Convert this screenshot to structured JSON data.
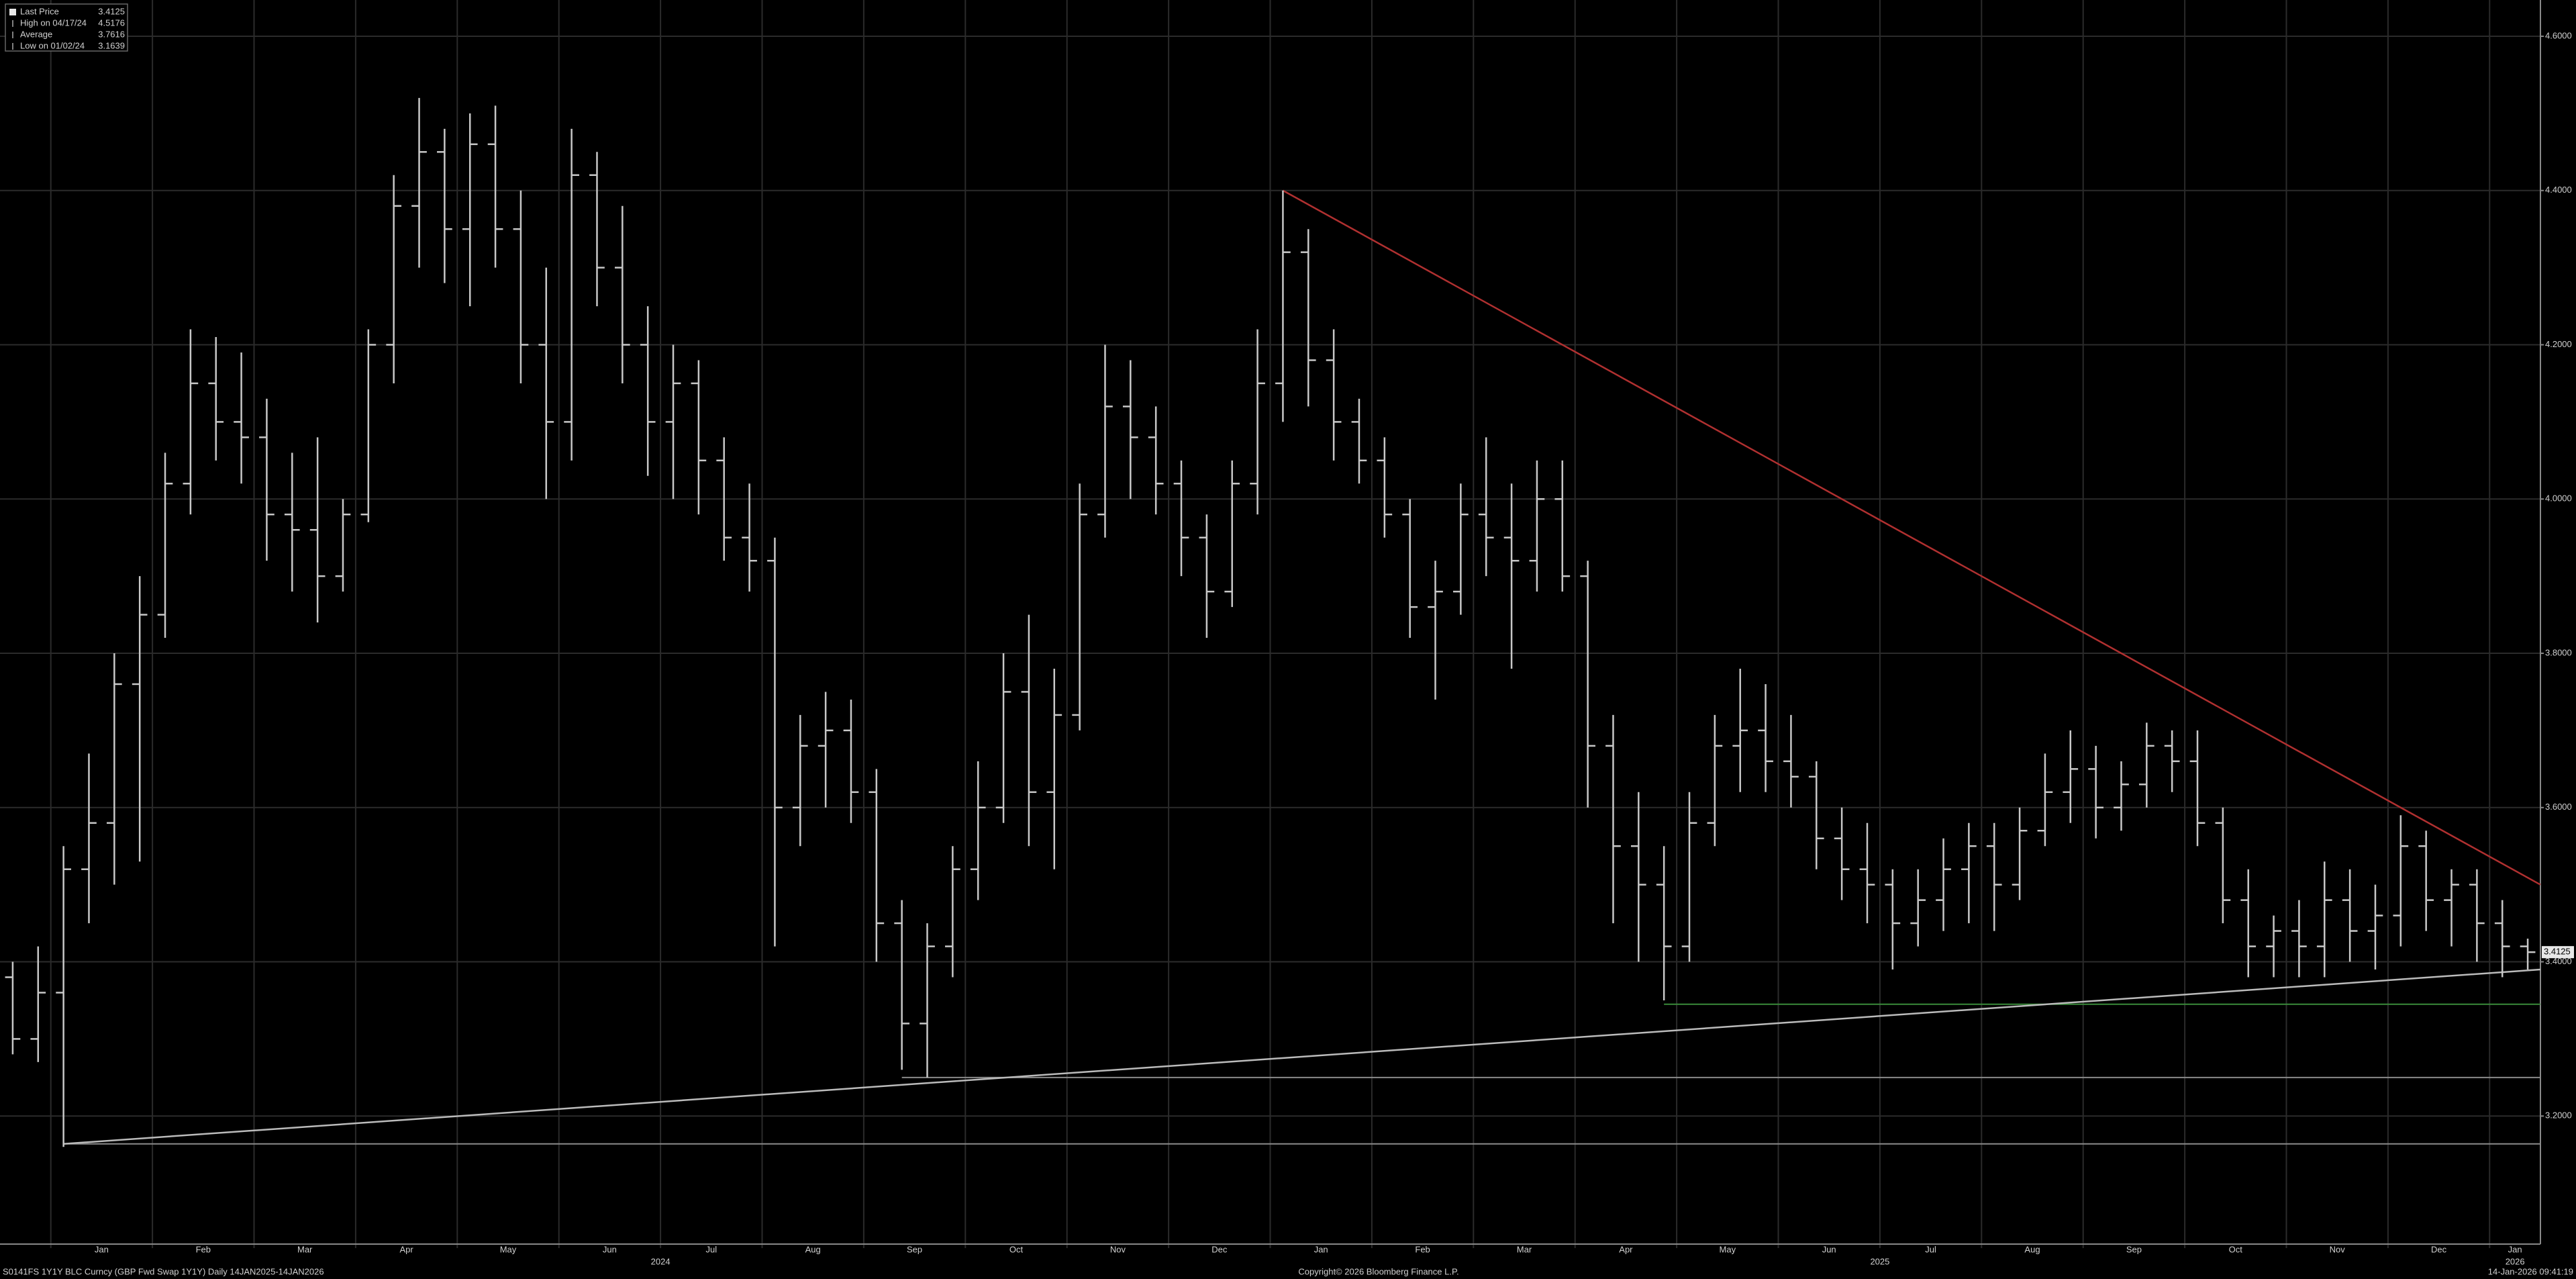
{
  "chart_data": {
    "type": "ohlc",
    "legend": [
      {
        "label": "Last Price",
        "value": 3.4125
      },
      {
        "label": "High on 04/17/24",
        "value": 4.5176
      },
      {
        "label": "Average",
        "value": 3.7616
      },
      {
        "label": "Low on 01/02/24",
        "value": 3.1639
      }
    ],
    "footer": {
      "left": "S0141FS 1Y1Y BLC Curncy (GBP Fwd Swap 1Y1Y) Daily 14JAN2025-14JAN2026",
      "center": "Copyright© 2026 Bloomberg Finance L.P.",
      "right": "14-Jan-2026 09:41:19"
    },
    "color": "#c8c8c8",
    "ylim": [
      3.034,
      4.647
    ],
    "yticks": [
      {
        "value": 3.2,
        "label": "3.2000"
      },
      {
        "value": 3.4,
        "label": "3.4000"
      },
      {
        "value": 3.6,
        "label": "3.6000"
      },
      {
        "value": 3.8,
        "label": "3.8000"
      },
      {
        "value": 4.0,
        "label": "4.0000"
      },
      {
        "value": 4.2,
        "label": "4.2000"
      },
      {
        "value": 4.4,
        "label": "4.4000"
      },
      {
        "value": 4.6,
        "label": "4.6000"
      }
    ],
    "grid": true,
    "trendlines": [
      {
        "color": "#b03030",
        "y": [
          4.4,
          3.5
        ]
      },
      {
        "color": "#bbbbbb",
        "y": [
          3.1639,
          3.39
        ]
      }
    ],
    "levels": [
      {
        "color": "#8a8a8a",
        "y": 3.25
      },
      {
        "color": "#3a8a3a",
        "y": 3.345
      }
    ],
    "periods": [
      {
        "year": null,
        "months": [
          {
            "label": null,
            "bars": [
              [
                3.38,
                3.4,
                3.28,
                3.3
              ],
              [
                3.3,
                3.42,
                3.27,
                3.36
              ]
            ]
          }
        ]
      },
      {
        "year": "2024",
        "months": [
          {
            "label": "Jan",
            "bars": [
              [
                3.36,
                3.55,
                3.16,
                3.52
              ],
              [
                3.52,
                3.67,
                3.45,
                3.58
              ],
              [
                3.58,
                3.8,
                3.5,
                3.76
              ],
              [
                3.76,
                3.9,
                3.53,
                3.85
              ]
            ]
          },
          {
            "label": "Feb",
            "bars": [
              [
                3.85,
                4.06,
                3.82,
                4.02
              ],
              [
                4.02,
                4.22,
                3.98,
                4.15
              ],
              [
                4.15,
                4.21,
                4.05,
                4.1
              ],
              [
                4.1,
                4.19,
                4.02,
                4.08
              ]
            ]
          },
          {
            "label": "Mar",
            "bars": [
              [
                4.08,
                4.13,
                3.92,
                3.98
              ],
              [
                3.98,
                4.06,
                3.88,
                3.96
              ],
              [
                3.96,
                4.08,
                3.84,
                3.9
              ],
              [
                3.9,
                4.0,
                3.88,
                3.98
              ]
            ]
          },
          {
            "label": "Apr",
            "bars": [
              [
                3.98,
                4.22,
                3.97,
                4.2
              ],
              [
                4.2,
                4.42,
                4.15,
                4.38
              ],
              [
                4.38,
                4.52,
                4.3,
                4.45
              ],
              [
                4.45,
                4.48,
                4.28,
                4.35
              ]
            ]
          },
          {
            "label": "May",
            "bars": [
              [
                4.35,
                4.5,
                4.25,
                4.46
              ],
              [
                4.46,
                4.51,
                4.3,
                4.35
              ],
              [
                4.35,
                4.4,
                4.15,
                4.2
              ],
              [
                4.2,
                4.3,
                4.0,
                4.1
              ]
            ]
          },
          {
            "label": "Jun",
            "bars": [
              [
                4.1,
                4.48,
                4.05,
                4.42
              ],
              [
                4.42,
                4.45,
                4.25,
                4.3
              ],
              [
                4.3,
                4.38,
                4.15,
                4.2
              ],
              [
                4.2,
                4.25,
                4.03,
                4.1
              ]
            ]
          },
          {
            "label": "Jul",
            "bars": [
              [
                4.1,
                4.2,
                4.0,
                4.15
              ],
              [
                4.15,
                4.18,
                3.98,
                4.05
              ],
              [
                4.05,
                4.08,
                3.92,
                3.95
              ],
              [
                3.95,
                4.02,
                3.88,
                3.92
              ]
            ]
          },
          {
            "label": "Aug",
            "bars": [
              [
                3.92,
                3.95,
                3.42,
                3.6
              ],
              [
                3.6,
                3.72,
                3.55,
                3.68
              ],
              [
                3.68,
                3.75,
                3.6,
                3.7
              ],
              [
                3.7,
                3.74,
                3.58,
                3.62
              ]
            ]
          },
          {
            "label": "Sep",
            "bars": [
              [
                3.62,
                3.65,
                3.4,
                3.45
              ],
              [
                3.45,
                3.48,
                3.26,
                3.32
              ],
              [
                3.32,
                3.45,
                3.25,
                3.42
              ],
              [
                3.42,
                3.55,
                3.38,
                3.52
              ]
            ]
          },
          {
            "label": "Oct",
            "bars": [
              [
                3.52,
                3.66,
                3.48,
                3.6
              ],
              [
                3.6,
                3.8,
                3.58,
                3.75
              ],
              [
                3.75,
                3.85,
                3.55,
                3.62
              ],
              [
                3.62,
                3.78,
                3.52,
                3.72
              ]
            ]
          },
          {
            "label": "Nov",
            "bars": [
              [
                3.72,
                4.02,
                3.7,
                3.98
              ],
              [
                3.98,
                4.2,
                3.95,
                4.12
              ],
              [
                4.12,
                4.18,
                4.0,
                4.08
              ],
              [
                4.08,
                4.12,
                3.98,
                4.02
              ]
            ]
          },
          {
            "label": "Dec",
            "bars": [
              [
                4.02,
                4.05,
                3.9,
                3.95
              ],
              [
                3.95,
                3.98,
                3.82,
                3.88
              ],
              [
                3.88,
                4.05,
                3.86,
                4.02
              ],
              [
                4.02,
                4.22,
                3.98,
                4.15
              ]
            ]
          }
        ]
      },
      {
        "year": "2025",
        "months": [
          {
            "label": "Jan",
            "bars": [
              [
                4.15,
                4.4,
                4.1,
                4.32
              ],
              [
                4.32,
                4.35,
                4.12,
                4.18
              ],
              [
                4.18,
                4.22,
                4.05,
                4.1
              ],
              [
                4.1,
                4.13,
                4.02,
                4.05
              ]
            ]
          },
          {
            "label": "Feb",
            "bars": [
              [
                4.05,
                4.08,
                3.95,
                3.98
              ],
              [
                3.98,
                4.0,
                3.82,
                3.86
              ],
              [
                3.86,
                3.92,
                3.74,
                3.88
              ],
              [
                3.88,
                4.02,
                3.85,
                3.98
              ]
            ]
          },
          {
            "label": "Mar",
            "bars": [
              [
                3.98,
                4.08,
                3.9,
                3.95
              ],
              [
                3.95,
                4.02,
                3.78,
                3.92
              ],
              [
                3.92,
                4.05,
                3.88,
                4.0
              ],
              [
                4.0,
                4.05,
                3.88,
                3.9
              ]
            ]
          },
          {
            "label": "Apr",
            "bars": [
              [
                3.9,
                3.92,
                3.6,
                3.68
              ],
              [
                3.68,
                3.72,
                3.45,
                3.55
              ],
              [
                3.55,
                3.62,
                3.4,
                3.5
              ],
              [
                3.5,
                3.55,
                3.35,
                3.42
              ]
            ]
          },
          {
            "label": "May",
            "bars": [
              [
                3.42,
                3.62,
                3.4,
                3.58
              ],
              [
                3.58,
                3.72,
                3.55,
                3.68
              ],
              [
                3.68,
                3.78,
                3.62,
                3.7
              ],
              [
                3.7,
                3.76,
                3.62,
                3.66
              ]
            ]
          },
          {
            "label": "Jun",
            "bars": [
              [
                3.66,
                3.72,
                3.6,
                3.64
              ],
              [
                3.64,
                3.66,
                3.52,
                3.56
              ],
              [
                3.56,
                3.6,
                3.48,
                3.52
              ],
              [
                3.52,
                3.58,
                3.45,
                3.5
              ]
            ]
          },
          {
            "label": "Jul",
            "bars": [
              [
                3.5,
                3.52,
                3.39,
                3.45
              ],
              [
                3.45,
                3.52,
                3.42,
                3.48
              ],
              [
                3.48,
                3.56,
                3.44,
                3.52
              ],
              [
                3.52,
                3.58,
                3.45,
                3.55
              ]
            ]
          },
          {
            "label": "Aug",
            "bars": [
              [
                3.55,
                3.58,
                3.44,
                3.5
              ],
              [
                3.5,
                3.6,
                3.48,
                3.57
              ],
              [
                3.57,
                3.67,
                3.55,
                3.62
              ],
              [
                3.62,
                3.7,
                3.58,
                3.65
              ]
            ]
          },
          {
            "label": "Sep",
            "bars": [
              [
                3.65,
                3.68,
                3.56,
                3.6
              ],
              [
                3.6,
                3.66,
                3.57,
                3.63
              ],
              [
                3.63,
                3.71,
                3.6,
                3.68
              ],
              [
                3.68,
                3.7,
                3.62,
                3.66
              ]
            ]
          },
          {
            "label": "Oct",
            "bars": [
              [
                3.66,
                3.7,
                3.55,
                3.58
              ],
              [
                3.58,
                3.6,
                3.45,
                3.48
              ],
              [
                3.48,
                3.52,
                3.38,
                3.42
              ],
              [
                3.42,
                3.46,
                3.38,
                3.44
              ]
            ]
          },
          {
            "label": "Nov",
            "bars": [
              [
                3.44,
                3.48,
                3.38,
                3.42
              ],
              [
                3.42,
                3.53,
                3.38,
                3.48
              ],
              [
                3.48,
                3.52,
                3.4,
                3.44
              ],
              [
                3.44,
                3.5,
                3.39,
                3.46
              ]
            ]
          },
          {
            "label": "Dec",
            "bars": [
              [
                3.46,
                3.59,
                3.42,
                3.55
              ],
              [
                3.55,
                3.57,
                3.44,
                3.48
              ],
              [
                3.48,
                3.52,
                3.42,
                3.5
              ],
              [
                3.5,
                3.52,
                3.4,
                3.45
              ]
            ]
          }
        ]
      },
      {
        "year": "2026",
        "months": [
          {
            "label": "Jan",
            "bars": [
              [
                3.45,
                3.48,
                3.38,
                3.42
              ],
              [
                3.42,
                3.43,
                3.39,
                3.4125
              ]
            ]
          }
        ]
      }
    ]
  }
}
